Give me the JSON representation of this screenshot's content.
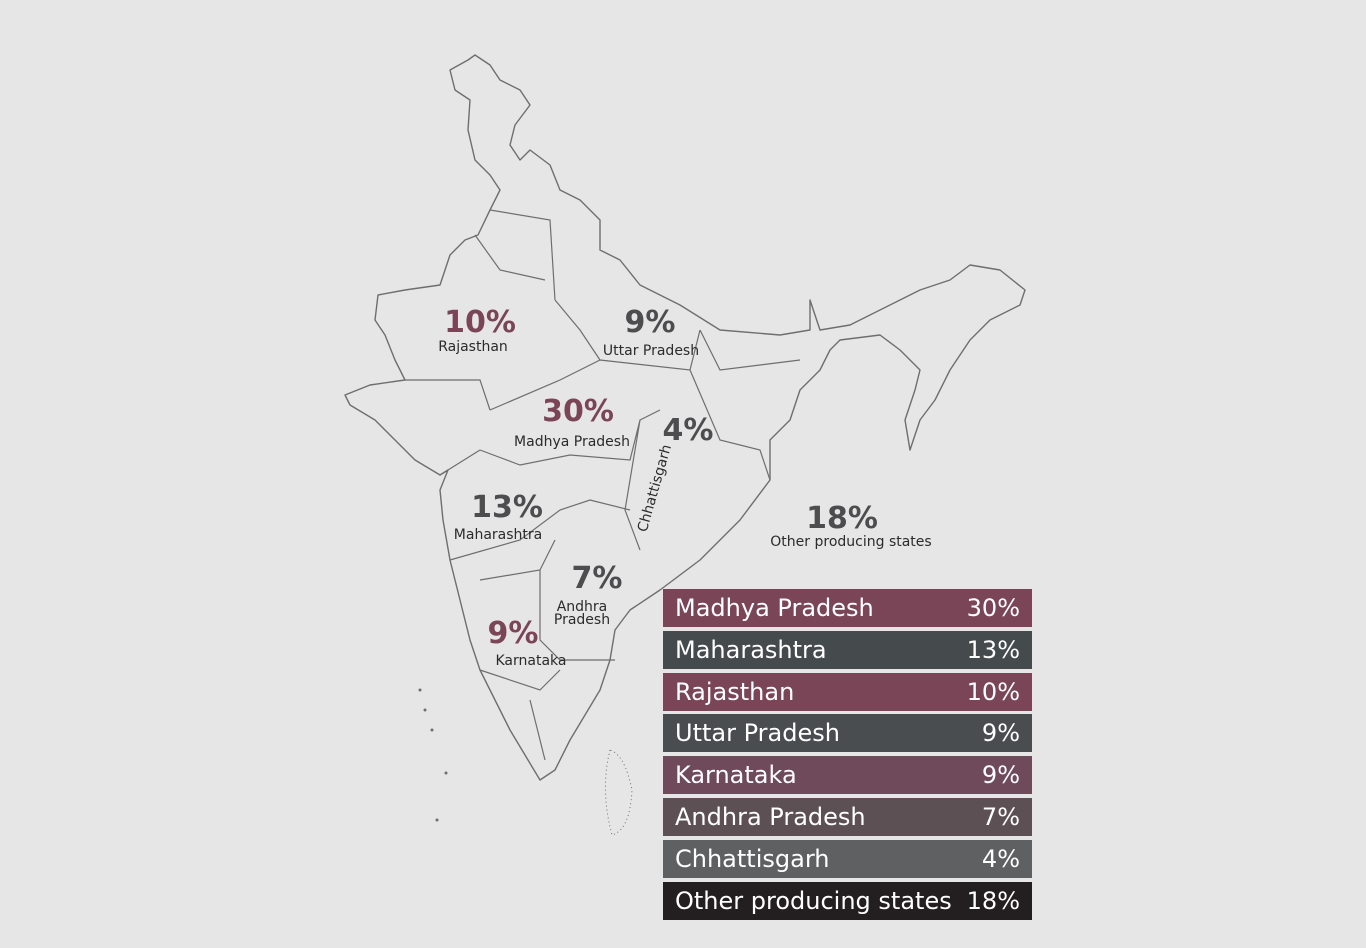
{
  "map": {
    "labels": [
      {
        "percent": "10%",
        "state": [
          "Rajasthan"
        ]
      },
      {
        "percent": "9%",
        "state": [
          "Uttar Pradesh"
        ]
      },
      {
        "percent": "30%",
        "state": [
          "Madhya Pradesh"
        ]
      },
      {
        "percent": "4%",
        "state": [
          "Chhattisgarh"
        ]
      },
      {
        "percent": "13%",
        "state": [
          "Maharashtra"
        ]
      },
      {
        "percent": "7%",
        "state": [
          "Andhra",
          "Pradesh"
        ]
      },
      {
        "percent": "9%",
        "state": [
          "Karnataka"
        ]
      },
      {
        "percent": "18%",
        "state": [
          "Other producing states"
        ]
      }
    ]
  },
  "table": {
    "rows": [
      [
        "Madhya Pradesh",
        "30%"
      ],
      [
        "Maharashtra",
        "13%"
      ],
      [
        "Rajasthan",
        "10%"
      ],
      [
        "Uttar Pradesh",
        "9%"
      ],
      [
        "Karnataka",
        "9%"
      ],
      [
        "Andhra Pradesh",
        "7%"
      ],
      [
        "Chhattisgarh",
        "4%"
      ],
      [
        "Other producing states",
        "18%"
      ]
    ]
  }
}
